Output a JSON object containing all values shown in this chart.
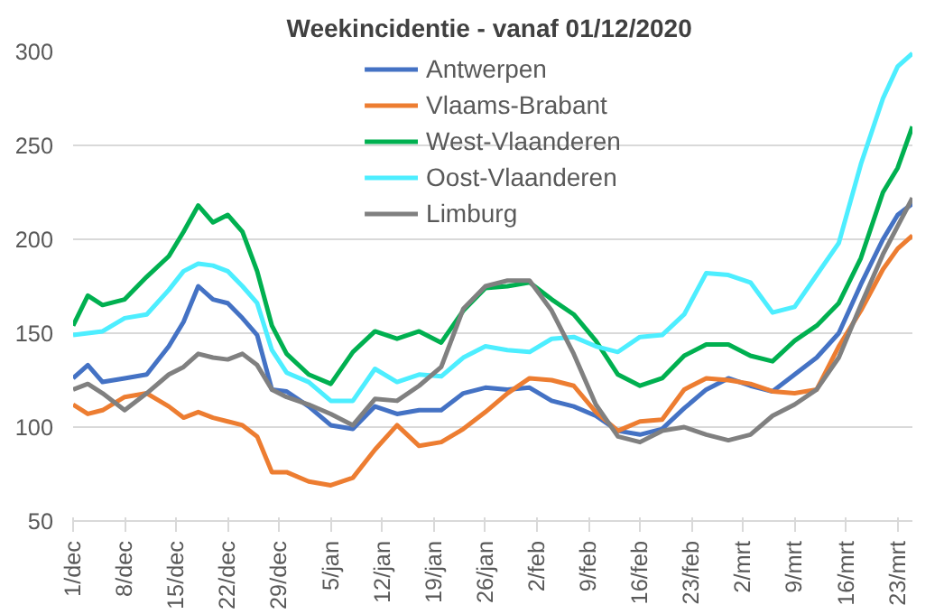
{
  "chart_data": {
    "type": "line",
    "title": "Weekincidentie  - vanaf 01/12/2020",
    "x": [
      "2020-12-01",
      "2020-12-03",
      "2020-12-05",
      "2020-12-08",
      "2020-12-11",
      "2020-12-14",
      "2020-12-16",
      "2020-12-18",
      "2020-12-20",
      "2020-12-22",
      "2020-12-24",
      "2020-12-26",
      "2020-12-28",
      "2020-12-30",
      "2021-01-02",
      "2021-01-05",
      "2021-01-08",
      "2021-01-11",
      "2021-01-14",
      "2021-01-17",
      "2021-01-20",
      "2021-01-23",
      "2021-01-26",
      "2021-01-29",
      "2021-02-01",
      "2021-02-04",
      "2021-02-07",
      "2021-02-10",
      "2021-02-13",
      "2021-02-16",
      "2021-02-19",
      "2021-02-22",
      "2021-02-25",
      "2021-02-28",
      "2021-03-03",
      "2021-03-06",
      "2021-03-09",
      "2021-03-12",
      "2021-03-15",
      "2021-03-18",
      "2021-03-21",
      "2021-03-23",
      "2021-03-25"
    ],
    "series": [
      {
        "name": "Antwerpen",
        "color": "#4472c4",
        "values": [
          126,
          133,
          124,
          126,
          128,
          143,
          156,
          175,
          168,
          166,
          158,
          149,
          120,
          119,
          111,
          101,
          99,
          111,
          107,
          109,
          109,
          118,
          121,
          120,
          121,
          114,
          111,
          106,
          98,
          96,
          99,
          110,
          120,
          126,
          122,
          119,
          128,
          137,
          150,
          176,
          200,
          213,
          219
        ]
      },
      {
        "name": "Vlaams-Brabant",
        "color": "#ed7d31",
        "values": [
          112,
          107,
          109,
          116,
          118,
          111,
          105,
          108,
          105,
          103,
          101,
          95,
          76,
          76,
          71,
          69,
          73,
          88,
          101,
          90,
          92,
          99,
          108,
          118,
          126,
          125,
          122,
          108,
          98,
          103,
          104,
          120,
          126,
          125,
          123,
          119,
          118,
          120,
          143,
          162,
          184,
          195,
          202
        ]
      },
      {
        "name": "West-Vlaanderen",
        "color": "#00b050",
        "values": [
          154,
          170,
          165,
          168,
          180,
          191,
          204,
          218,
          209,
          213,
          204,
          183,
          154,
          139,
          128,
          123,
          140,
          151,
          147,
          151,
          145,
          162,
          174,
          175,
          177,
          168,
          160,
          146,
          128,
          122,
          126,
          138,
          144,
          144,
          138,
          135,
          146,
          154,
          166,
          190,
          225,
          238,
          260
        ]
      },
      {
        "name": "Oost-Vlaanderen",
        "color": "#4deeff",
        "values": [
          149,
          150,
          151,
          158,
          160,
          173,
          183,
          187,
          186,
          183,
          175,
          166,
          141,
          129,
          124,
          114,
          114,
          131,
          124,
          128,
          127,
          137,
          143,
          141,
          140,
          147,
          148,
          143,
          140,
          148,
          149,
          160,
          182,
          181,
          177,
          161,
          164,
          181,
          198,
          240,
          275,
          292,
          299
        ]
      },
      {
        "name": "Limburg",
        "color": "#808080",
        "values": [
          120,
          123,
          118,
          109,
          118,
          128,
          132,
          139,
          137,
          136,
          139,
          133,
          120,
          116,
          112,
          107,
          101,
          115,
          114,
          122,
          132,
          163,
          175,
          178,
          178,
          162,
          139,
          112,
          95,
          92,
          98,
          100,
          96,
          93,
          96,
          106,
          112,
          120,
          137,
          165,
          192,
          207,
          222
        ]
      }
    ],
    "xlim": [
      "2020-12-01",
      "2021-03-25"
    ],
    "xticks": [
      {
        "value": "2020-12-01",
        "label": "1/dec"
      },
      {
        "value": "2020-12-08",
        "label": "8/dec"
      },
      {
        "value": "2020-12-15",
        "label": "15/dec"
      },
      {
        "value": "2020-12-22",
        "label": "22/dec"
      },
      {
        "value": "2020-12-29",
        "label": "29/dec"
      },
      {
        "value": "2021-01-05",
        "label": "5/jan"
      },
      {
        "value": "2021-01-12",
        "label": "12/jan"
      },
      {
        "value": "2021-01-19",
        "label": "19/jan"
      },
      {
        "value": "2021-01-26",
        "label": "26/jan"
      },
      {
        "value": "2021-02-02",
        "label": "2/feb"
      },
      {
        "value": "2021-02-09",
        "label": "9/feb"
      },
      {
        "value": "2021-02-16",
        "label": "16/feb"
      },
      {
        "value": "2021-02-23",
        "label": "23/feb"
      },
      {
        "value": "2021-03-02",
        "label": "2/mrt"
      },
      {
        "value": "2021-03-09",
        "label": "9/mrt"
      },
      {
        "value": "2021-03-16",
        "label": "16/mrt"
      },
      {
        "value": "2021-03-23",
        "label": "23/mrt"
      }
    ],
    "ylim": [
      50,
      300
    ],
    "yticks": [
      50,
      100,
      150,
      200,
      250,
      300
    ],
    "grid": "y",
    "legend": "top",
    "marker": "none",
    "line_style": "solid"
  }
}
